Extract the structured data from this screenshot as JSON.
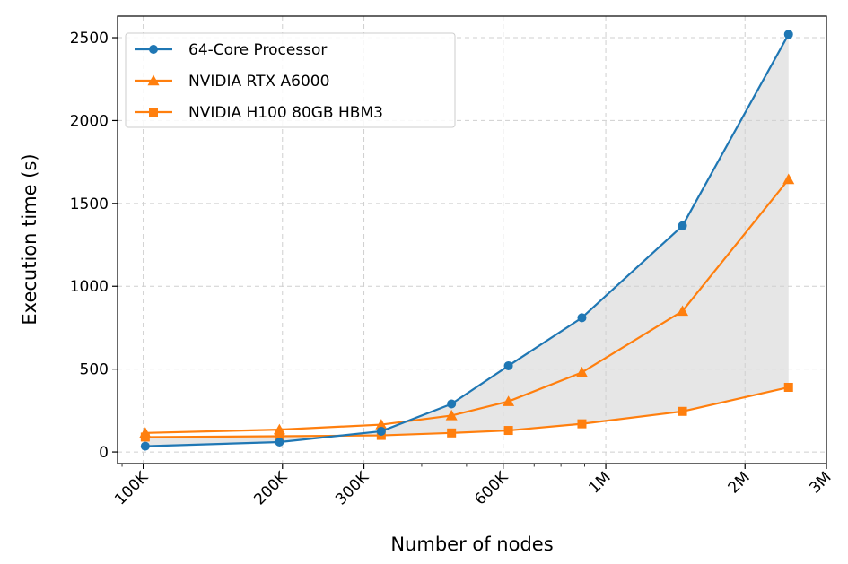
{
  "chart_data": {
    "type": "line",
    "title": "",
    "xlabel": "Number of nodes",
    "ylabel": "Execution time (s)",
    "x_scale": "log",
    "xlim": [
      88000,
      3000000
    ],
    "ylim": [
      -70,
      2630
    ],
    "x_ticks": [
      {
        "value": 100000,
        "label": "100K"
      },
      {
        "value": 200000,
        "label": "200K"
      },
      {
        "value": 300000,
        "label": "300K"
      },
      {
        "value": 600000,
        "label": "600K"
      },
      {
        "value": 1000000,
        "label": "1M"
      },
      {
        "value": 2000000,
        "label": "2M"
      },
      {
        "value": 3000000,
        "label": "3M"
      }
    ],
    "y_ticks": [
      {
        "value": 0,
        "label": "0"
      },
      {
        "value": 500,
        "label": "500"
      },
      {
        "value": 1000,
        "label": "1000"
      },
      {
        "value": 1500,
        "label": "1500"
      },
      {
        "value": 2000,
        "label": "2000"
      },
      {
        "value": 2500,
        "label": "2500"
      }
    ],
    "x": [
      101000,
      197000,
      327000,
      464000,
      616000,
      888000,
      1465000,
      2484000
    ],
    "series": [
      {
        "name": "64-Core Processor",
        "color": "#1f77b4",
        "marker": "circle",
        "values": [
          35,
          60,
          125,
          290,
          520,
          810,
          1365,
          2520
        ]
      },
      {
        "name": "NVIDIA RTX A6000",
        "color": "#ff7f0e",
        "marker": "triangle",
        "values": [
          115,
          135,
          165,
          220,
          305,
          480,
          850,
          1645
        ]
      },
      {
        "name": "NVIDIA H100 80GB HBM3",
        "color": "#ff7f0e",
        "marker": "square",
        "values": [
          90,
          95,
          100,
          115,
          130,
          170,
          245,
          390
        ]
      }
    ],
    "fill_between": {
      "upper": "64-Core Processor",
      "lower": "NVIDIA H100 80GB HBM3",
      "color": "#e6e6e6"
    },
    "grid": true,
    "legend_position": "upper-left"
  }
}
